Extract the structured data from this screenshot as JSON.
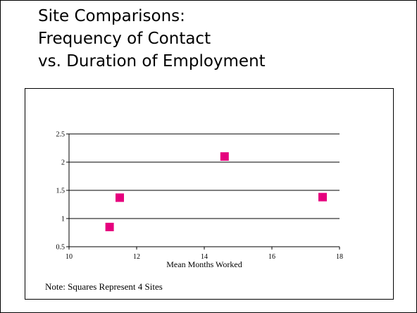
{
  "slide": {
    "title_lines": [
      "Site Comparisons:",
      "Frequency of Contact",
      "vs. Duration of Employment"
    ],
    "note": "Note:  Squares Represent 4 Sites"
  },
  "chart_data": {
    "type": "scatter",
    "title": "",
    "xlabel": "Mean Months Worked",
    "ylabel": "",
    "xlim": [
      10,
      18
    ],
    "ylim": [
      0.5,
      2.5
    ],
    "x_ticks": [
      10,
      12,
      14,
      16,
      18
    ],
    "y_ticks": [
      0.5,
      1,
      1.5,
      2,
      2.5
    ],
    "x_tick_labels": [
      "10",
      "12",
      "14",
      "16",
      "18"
    ],
    "y_tick_labels": [
      "0.5",
      "1",
      "1.5",
      "2",
      "2.5"
    ],
    "grid": "horizontal",
    "legend": "none",
    "marker": "square",
    "marker_color": "#e6007e",
    "series": [
      {
        "points": [
          {
            "x": 11.2,
            "y": 0.85
          },
          {
            "x": 11.5,
            "y": 1.37
          },
          {
            "x": 14.6,
            "y": 2.1
          },
          {
            "x": 17.5,
            "y": 1.38
          }
        ]
      }
    ]
  }
}
